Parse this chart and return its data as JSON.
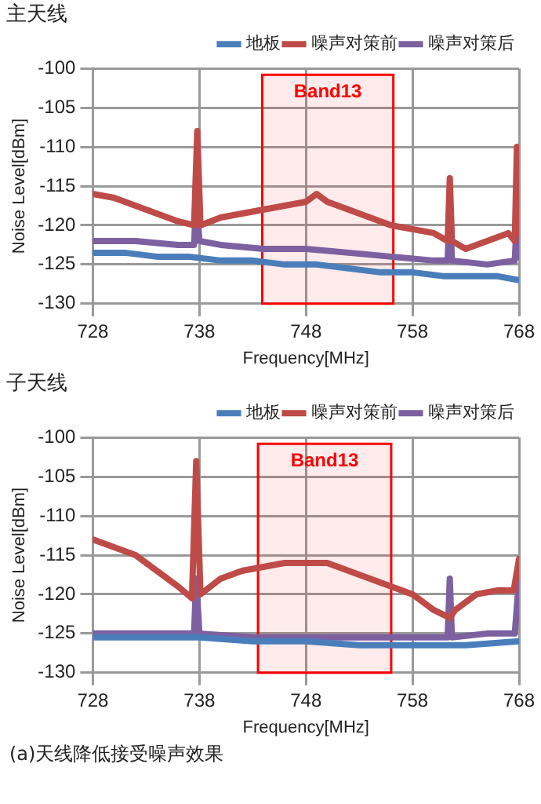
{
  "chart_data": [
    {
      "type": "line",
      "title": "主天线",
      "xlabel": "Frequency[MHz]",
      "ylabel": "Noise Level[dBm]",
      "xlim": [
        728,
        768
      ],
      "xticks": [
        728,
        738,
        748,
        758,
        768
      ],
      "ylim": [
        -130,
        -100
      ],
      "yticks": [
        -130,
        -125,
        -120,
        -115,
        -110,
        -105,
        -100
      ],
      "grid": true,
      "legend": "top right",
      "line_style": "solid",
      "marker": "none",
      "bands": [
        {
          "axis": "x",
          "from": 743.9,
          "to": 756.2,
          "label": "Band13",
          "color": "#ff0000"
        }
      ],
      "series": [
        {
          "name": "地板",
          "color": "#4a7ebb",
          "x": [
            728,
            731,
            734,
            737,
            740,
            743,
            746,
            749,
            752,
            755,
            758,
            761,
            764,
            766,
            768
          ],
          "values": [
            -123.5,
            -123.5,
            -124,
            -124,
            -124.5,
            -124.5,
            -125,
            -125,
            -125.5,
            -126,
            -126,
            -126.5,
            -126.5,
            -126.5,
            -127
          ]
        },
        {
          "name": "噪声对策前",
          "color": "#be4b48",
          "x": [
            728,
            730,
            732,
            734,
            736,
            737.5,
            737.8,
            738.1,
            740,
            742,
            744,
            746,
            748,
            749,
            750,
            752,
            754,
            756,
            758,
            760,
            761.3,
            761.5,
            761.7,
            763,
            765,
            767,
            767.6,
            767.8,
            768
          ],
          "values": [
            -116,
            -116.5,
            -117.5,
            -118.5,
            -119.5,
            -120,
            -108,
            -120,
            -119,
            -118.5,
            -118,
            -117.5,
            -117,
            -116,
            -117,
            -118,
            -119,
            -120,
            -120.5,
            -121,
            -122,
            -114,
            -122,
            -123,
            -122,
            -121,
            -122,
            -110,
            -121
          ]
        },
        {
          "name": "噪声对策后",
          "color": "#7d60a0",
          "x": [
            728,
            732,
            736,
            737.5,
            737.7,
            738,
            740,
            744,
            748,
            752,
            756,
            760,
            761.3,
            761.5,
            761.7,
            765,
            767.6,
            767.8,
            768
          ],
          "values": [
            -122,
            -122,
            -122.5,
            -122.5,
            -116.5,
            -122,
            -122.5,
            -123,
            -123,
            -123.5,
            -124,
            -124.5,
            -124.5,
            -117,
            -124.5,
            -125,
            -124.5,
            -119,
            -124
          ]
        }
      ]
    },
    {
      "type": "line",
      "title": "子天线",
      "xlabel": "Frequency[MHz]",
      "ylabel": "Noise Level[dBm]",
      "xlim": [
        728,
        768
      ],
      "xticks": [
        728,
        738,
        748,
        758,
        768
      ],
      "ylim": [
        -130,
        -100
      ],
      "yticks": [
        -130,
        -125,
        -120,
        -115,
        -110,
        -105,
        -100
      ],
      "grid": true,
      "legend": "top right",
      "line_style": "solid",
      "marker": "none",
      "bands": [
        {
          "axis": "x",
          "from": 743.5,
          "to": 756,
          "label": "Band13",
          "color": "#ff0000"
        }
      ],
      "annotations": [
        "(a)天线降低接受噪声效果"
      ],
      "series": [
        {
          "name": "地板",
          "color": "#4a7ebb",
          "x": [
            728,
            733,
            738,
            743,
            748,
            753,
            758,
            763,
            768
          ],
          "values": [
            -125.5,
            -125.5,
            -125.5,
            -126,
            -126,
            -126.5,
            -126.5,
            -126.5,
            -126
          ]
        },
        {
          "name": "噪声对策前",
          "color": "#be4b48",
          "x": [
            728,
            730,
            732,
            734,
            736,
            737.3,
            737.7,
            738.1,
            740,
            742,
            744,
            746,
            748,
            750,
            752,
            754,
            756,
            758,
            760,
            761.5,
            762,
            764,
            766,
            767.5,
            768
          ],
          "values": [
            -113,
            -114,
            -115,
            -117,
            -119,
            -120.5,
            -103,
            -120,
            -118,
            -117,
            -116.5,
            -116,
            -116,
            -116,
            -117,
            -118,
            -119,
            -120,
            -122,
            -123,
            -122,
            -120,
            -119.5,
            -119.5,
            -115.5
          ]
        },
        {
          "name": "噪声对策后",
          "color": "#7d60a0",
          "x": [
            728,
            733,
            737.5,
            737.7,
            738,
            743,
            748,
            753,
            758,
            761.3,
            761.5,
            761.7,
            765,
            767.6,
            768
          ],
          "values": [
            -125,
            -125,
            -125,
            -118,
            -125,
            -125.5,
            -125.5,
            -125.5,
            -125.5,
            -125.5,
            -118,
            -125.5,
            -125,
            -125,
            -118
          ]
        }
      ]
    }
  ]
}
